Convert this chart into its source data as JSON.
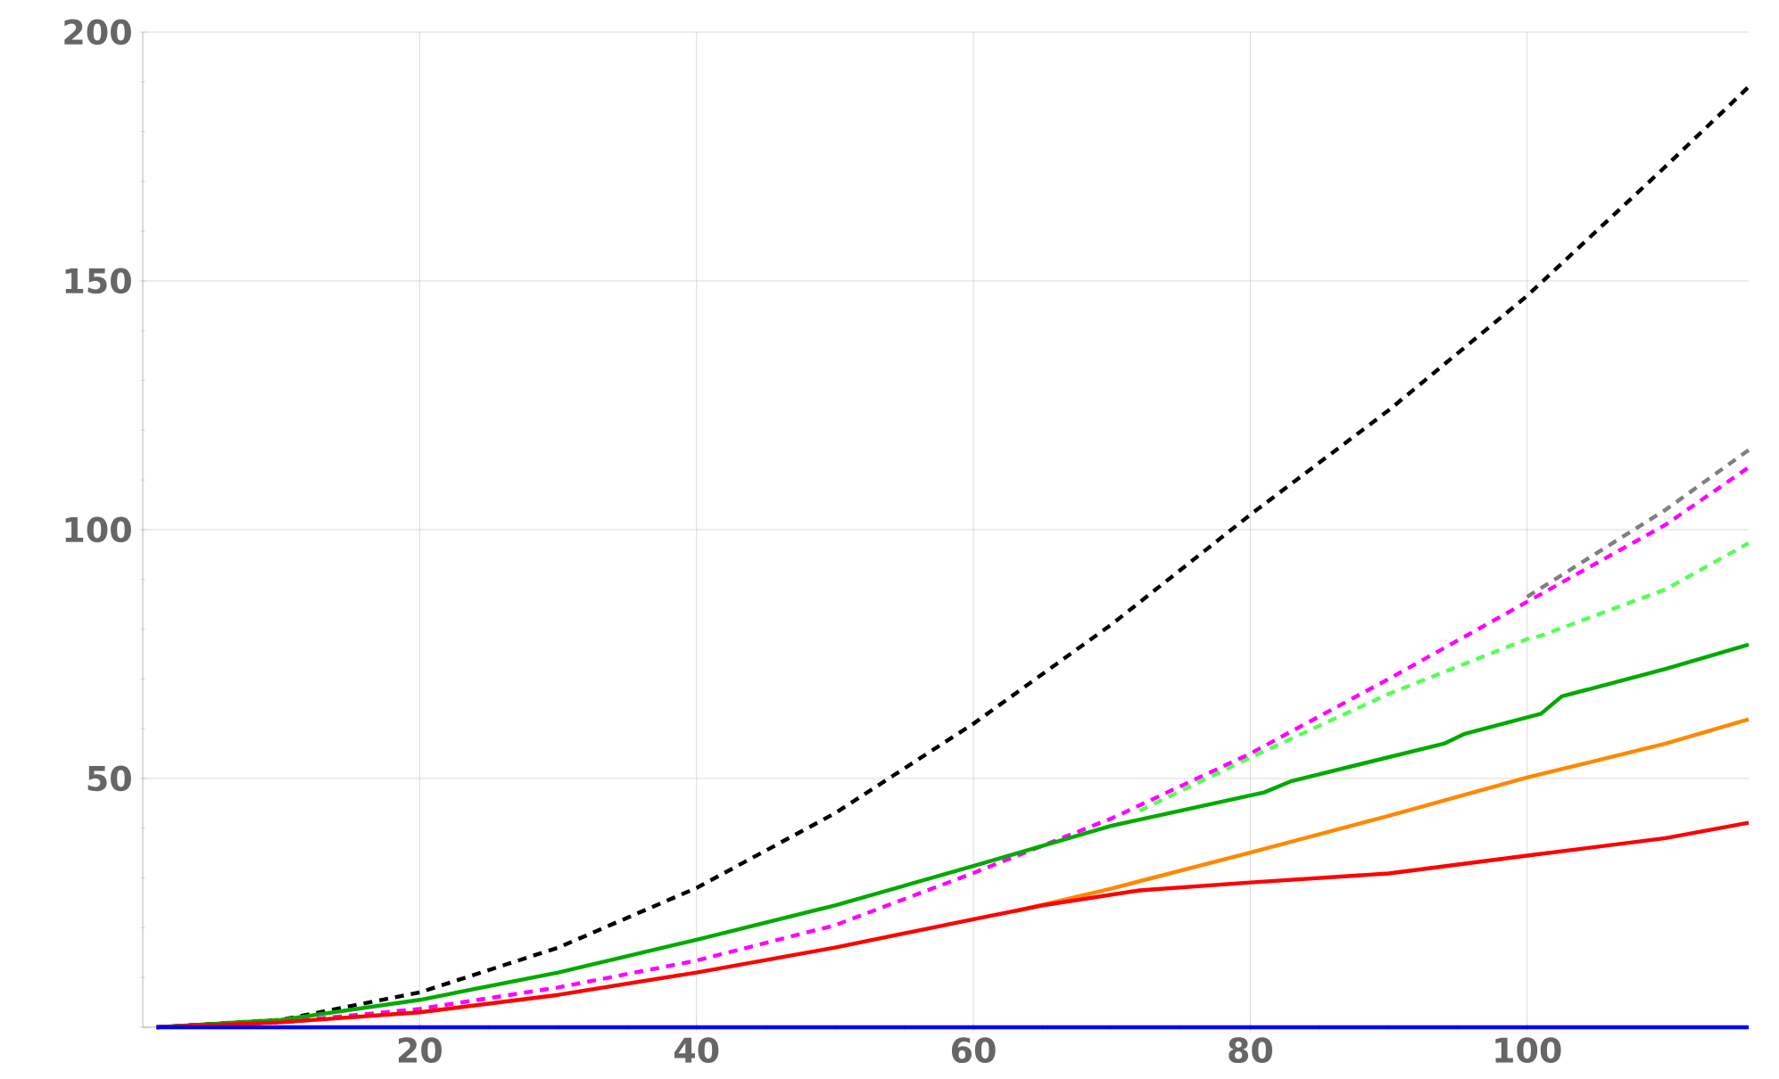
{
  "chart_data": {
    "type": "line",
    "xlim": [
      0,
      116
    ],
    "ylim": [
      0,
      200
    ],
    "xticks": [
      20,
      40,
      60,
      80,
      100
    ],
    "yticks": [
      {
        "value": 0,
        "label": null
      },
      50,
      100,
      150,
      200
    ],
    "grid": true,
    "marker": "none",
    "series": [
      {
        "color": "#000000",
        "line_style": "dashed",
        "x": [
          1,
          10,
          20,
          30,
          40,
          50,
          60,
          70,
          80,
          90,
          100,
          110,
          116
        ],
        "values": [
          0,
          1.5,
          7,
          16,
          28,
          43,
          61,
          81,
          103,
          124,
          147,
          173,
          189
        ]
      },
      {
        "color": "#808080",
        "line_style": "dashed",
        "x": [
          100,
          110,
          116
        ],
        "values": [
          86.5,
          104,
          116
        ]
      },
      {
        "color": "#55ff55",
        "line_style": "dashed",
        "x": [
          72,
          80,
          90,
          100,
          101,
          110,
          116
        ],
        "values": [
          43.5,
          54.2,
          67,
          78,
          78.7,
          88,
          97.3
        ]
      },
      {
        "color": "#ff00ff",
        "line_style": "dashed",
        "x": [
          1,
          10,
          20,
          30,
          40,
          50,
          60,
          70,
          80,
          90,
          100,
          110,
          116
        ],
        "values": [
          0,
          1,
          3.7,
          8,
          13.4,
          20.5,
          31,
          42,
          55,
          70,
          85.5,
          101,
          112.5
        ]
      },
      {
        "color": "#00aa00",
        "line_style": "solid",
        "x": [
          1,
          10,
          20,
          30,
          40,
          50,
          60,
          70,
          81,
          83,
          94,
          95.5,
          101,
          102.5,
          110,
          116
        ],
        "values": [
          0,
          1.5,
          5.5,
          11,
          17.6,
          24.5,
          32.4,
          40.5,
          47.2,
          49.5,
          57,
          59,
          63,
          66.5,
          72,
          76.9
        ]
      },
      {
        "color": "#ff8800",
        "line_style": "solid",
        "x": [
          63,
          70,
          80,
          90,
          100,
          110,
          116
        ],
        "values": [
          23.3,
          27.9,
          35.1,
          42.5,
          50.2,
          57,
          61.9
        ]
      },
      {
        "color": "#ff0000",
        "line_style": "solid",
        "x": [
          1,
          10,
          20,
          30,
          40,
          50,
          60,
          65,
          72,
          80,
          90,
          100,
          110,
          116
        ],
        "values": [
          0,
          1,
          3,
          6.5,
          11,
          16,
          21.7,
          24.5,
          27.5,
          29.1,
          30.9,
          34.5,
          38,
          41.1
        ]
      },
      {
        "color": "#0000ff",
        "line_style": "solid",
        "x": [
          1,
          116
        ],
        "values": [
          0,
          0
        ]
      }
    ]
  }
}
